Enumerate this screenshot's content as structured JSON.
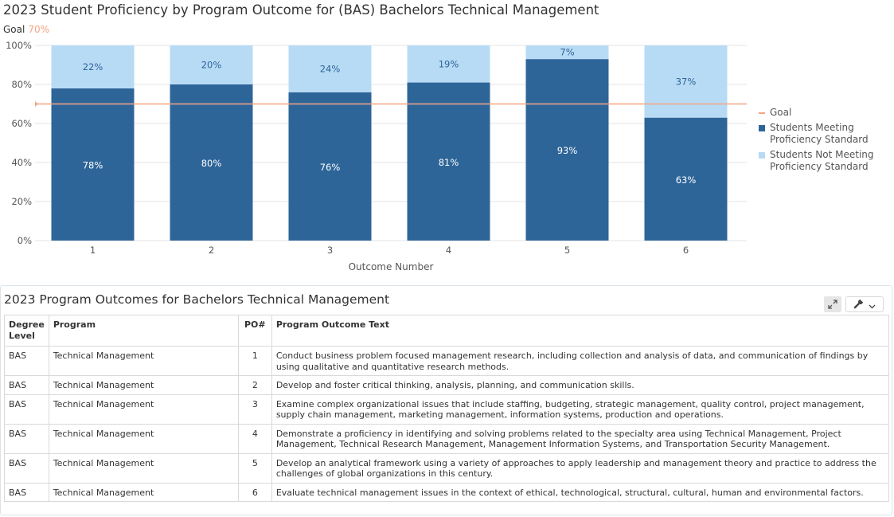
{
  "chart": {
    "title": "2023 Student Proficiency by Program Outcome for (BAS) Bachelors Technical Management",
    "goal_label": "Goal",
    "goal_value_label": "70%"
  },
  "chart_data": {
    "type": "bar",
    "stacked": true,
    "title": "2023 Student Proficiency by Program Outcome for (BAS) Bachelors Technical Management",
    "xlabel": "Outcome Number",
    "ylabel": "",
    "categories": [
      "1",
      "2",
      "3",
      "4",
      "5",
      "6"
    ],
    "ylim": [
      0,
      100
    ],
    "yticks": [
      "0%",
      "20%",
      "40%",
      "60%",
      "80%",
      "100%"
    ],
    "series": [
      {
        "name": "Students Meeting Proficiency Standard",
        "values": [
          78,
          80,
          76,
          81,
          93,
          63
        ],
        "labels": [
          "78%",
          "80%",
          "76%",
          "81%",
          "93%",
          "63%"
        ]
      },
      {
        "name": "Students Not Meeting Proficiency Standard",
        "values": [
          22,
          20,
          24,
          19,
          7,
          37
        ],
        "labels": [
          "22%",
          "20%",
          "24%",
          "19%",
          "7%",
          "37%"
        ]
      }
    ],
    "goal": {
      "name": "Goal",
      "value": 70
    },
    "grid": true,
    "legend_position": "right"
  },
  "legend": {
    "goal": "Goal",
    "meeting": "Students Meeting Proficiency Standard",
    "not_meeting": "Students Not Meeting Proficiency Standard"
  },
  "colors": {
    "meeting": "#2e6599",
    "not_meeting": "#b8dbf5",
    "goal": "#f4a582",
    "grid": "#e6e6e6"
  },
  "table": {
    "title": "2023 Program Outcomes for Bachelors Technical Management",
    "headers": {
      "level": "Degree Level",
      "program": "Program",
      "po": "PO#",
      "text": "Program Outcome Text"
    },
    "rows": [
      {
        "level": "BAS",
        "program": "Technical Management",
        "po": "1",
        "text": "Conduct business problem focused management research, including collection and analysis of data, and communication of findings by using qualitative and quantitative research methods."
      },
      {
        "level": "BAS",
        "program": "Technical Management",
        "po": "2",
        "text": "Develop and foster critical thinking, analysis, planning, and communication skills."
      },
      {
        "level": "BAS",
        "program": "Technical Management",
        "po": "3",
        "text": "Examine complex organizational issues that include staffing, budgeting, strategic management, quality control, project management, supply chain management, marketing management, information systems, production and operations."
      },
      {
        "level": "BAS",
        "program": "Technical Management",
        "po": "4",
        "text": "Demonstrate a proficiency in identifying and solving problems related to the specialty area using Technical Management, Project Management, Technical Research Management, Management Information Systems, and Transportation Security Management."
      },
      {
        "level": "BAS",
        "program": "Technical Management",
        "po": "5",
        "text": "Develop an analytical framework using a variety of approaches to apply leadership and management theory and practice to address the challenges of global organizations in this century."
      },
      {
        "level": "BAS",
        "program": "Technical Management",
        "po": "6",
        "text": "Evaluate technical management issues in the context of ethical, technological, structural, cultural, human and environmental factors."
      }
    ],
    "toolbar": {
      "expand_icon": "expand-icon",
      "settings_icon": "wrench-icon",
      "menu_icon": "chevron-down-icon"
    }
  }
}
